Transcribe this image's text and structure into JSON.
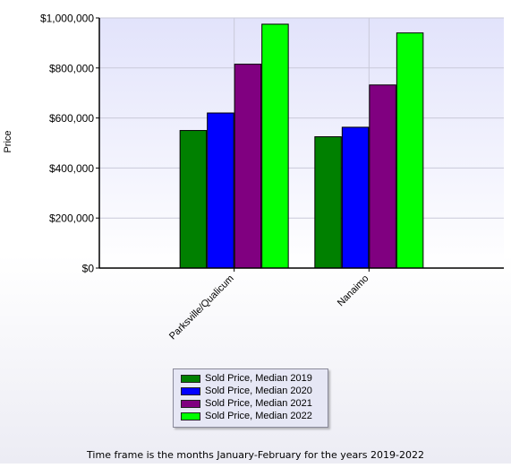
{
  "chart_data": {
    "type": "bar",
    "ylabel": "Price",
    "ylim": [
      0,
      1000000
    ],
    "y_ticks": [
      "$0",
      "$200,000",
      "$400,000",
      "$600,000",
      "$800,000",
      "$1,000,000"
    ],
    "y_tick_values": [
      0,
      200000,
      400000,
      600000,
      800000,
      1000000
    ],
    "categories": [
      "Parksville/Qualicum",
      "Nanaimo"
    ],
    "series": [
      {
        "name": "Sold Price, Median 2019",
        "color": "#008000",
        "values": [
          550000,
          525000
        ]
      },
      {
        "name": "Sold Price, Median 2020",
        "color": "#0000ff",
        "values": [
          620000,
          563000
        ]
      },
      {
        "name": "Sold Price, Median 2021",
        "color": "#800080",
        "values": [
          815000,
          732000
        ]
      },
      {
        "name": "Sold Price, Median 2022",
        "color": "#00ff00",
        "values": [
          975000,
          940000
        ]
      }
    ],
    "grid": true,
    "legend_position": "bottom-center"
  },
  "footnote": "Time frame is the months January-February for the years 2019-2022"
}
